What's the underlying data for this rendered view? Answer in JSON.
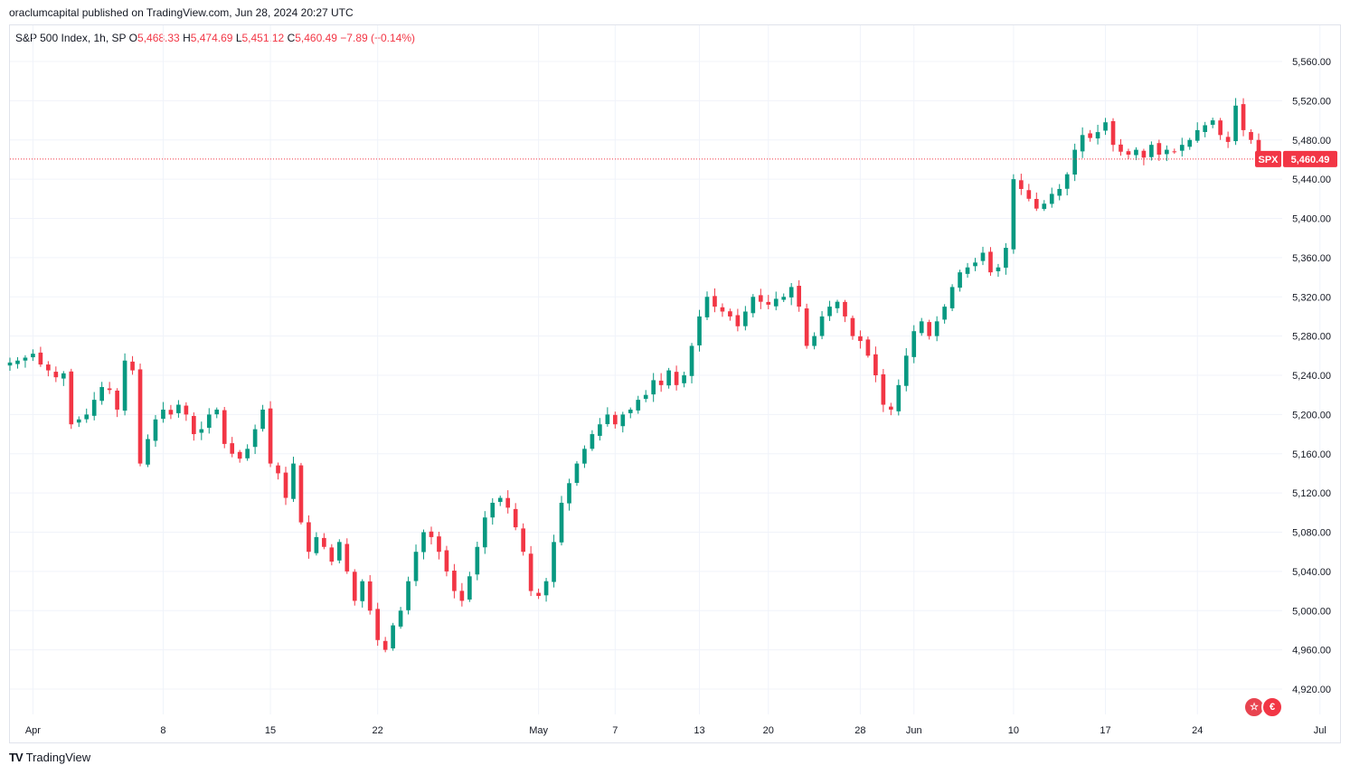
{
  "header": {
    "publisher": "oraclumcapital published on TradingView.com, Jun 28, 2024 20:27 UTC"
  },
  "legend": {
    "symbol": "S&P 500 Index, 1h, SP",
    "o_label": "O",
    "o_value": "5,468.33",
    "h_label": "H",
    "h_value": "5,474.69",
    "l_label": "L",
    "l_value": "5,451.12",
    "c_label": "C",
    "c_value": "5,460.49",
    "change": "−7.89 (−0.14%)"
  },
  "price_tag": {
    "symbol": "SPX",
    "value": "5,460.49"
  },
  "footer": {
    "brand": "TradingView"
  },
  "colors": {
    "up": "#089981",
    "down": "#f23645",
    "grid": "#f0f3fa",
    "text": "#131722"
  },
  "chart_data": {
    "type": "candlestick",
    "title": "S&P 500 Index, 1h, SP",
    "last_price": 5460.49,
    "ylim": [
      4880,
      5600
    ],
    "y_ticks": [
      4920,
      4960,
      5000,
      5040,
      5080,
      5120,
      5160,
      5200,
      5240,
      5280,
      5320,
      5360,
      5400,
      5440,
      5480,
      5520,
      5560
    ],
    "y_tick_labels": [
      "4,920.00",
      "4,960.00",
      "5,000.00",
      "5,040.00",
      "5,080.00",
      "5,120.00",
      "5,160.00",
      "5,200.00",
      "5,240.00",
      "5,280.00",
      "5,320.00",
      "5,360.00",
      "5,400.00",
      "5,440.00",
      "5,480.00",
      "5,520.00",
      "5,560.00"
    ],
    "x_tick_labels": [
      "Apr",
      "8",
      "15",
      "22",
      "May",
      "7",
      "13",
      "20",
      "28",
      "Jun",
      "10",
      "17",
      "24",
      "Jul"
    ],
    "x_tick_bar_index": [
      3,
      20,
      34,
      48,
      69,
      79,
      90,
      99,
      111,
      118,
      131,
      143,
      155,
      171
    ],
    "grid": true,
    "closes": [
      5253,
      5255,
      5258,
      5262,
      5251,
      5245,
      5238,
      5242,
      5190,
      5195,
      5200,
      5215,
      5228,
      5225,
      5205,
      5255,
      5245,
      5150,
      5175,
      5195,
      5205,
      5200,
      5210,
      5200,
      5180,
      5185,
      5200,
      5205,
      5170,
      5160,
      5155,
      5165,
      5185,
      5205,
      5150,
      5140,
      5115,
      5150,
      5090,
      5060,
      5075,
      5065,
      5050,
      5070,
      5040,
      5010,
      5030,
      5000,
      4970,
      4960,
      4985,
      5000,
      5030,
      5060,
      5080,
      5075,
      5060,
      5040,
      5020,
      5010,
      5035,
      5065,
      5095,
      5110,
      5115,
      5105,
      5085,
      5060,
      5020,
      5015,
      5030,
      5070,
      5110,
      5130,
      5150,
      5165,
      5180,
      5190,
      5200,
      5190,
      5200,
      5205,
      5215,
      5220,
      5235,
      5230,
      5245,
      5230,
      5240,
      5270,
      5300,
      5320,
      5310,
      5305,
      5300,
      5290,
      5305,
      5320,
      5315,
      5312,
      5318,
      5320,
      5330,
      5310,
      5270,
      5280,
      5300,
      5310,
      5315,
      5300,
      5280,
      5275,
      5260,
      5240,
      5210,
      5205,
      5230,
      5260,
      5285,
      5295,
      5280,
      5295,
      5310,
      5330,
      5345,
      5350,
      5355,
      5365,
      5345,
      5350,
      5370,
      5440,
      5430,
      5420,
      5410,
      5415,
      5425,
      5430,
      5445,
      5470,
      5485,
      5482,
      5488,
      5498,
      5475,
      5468,
      5465,
      5470,
      5462,
      5475,
      5465,
      5470,
      5468,
      5475,
      5480,
      5490,
      5495,
      5500,
      5485,
      5478,
      5515,
      5490,
      5480,
      5460
    ]
  }
}
